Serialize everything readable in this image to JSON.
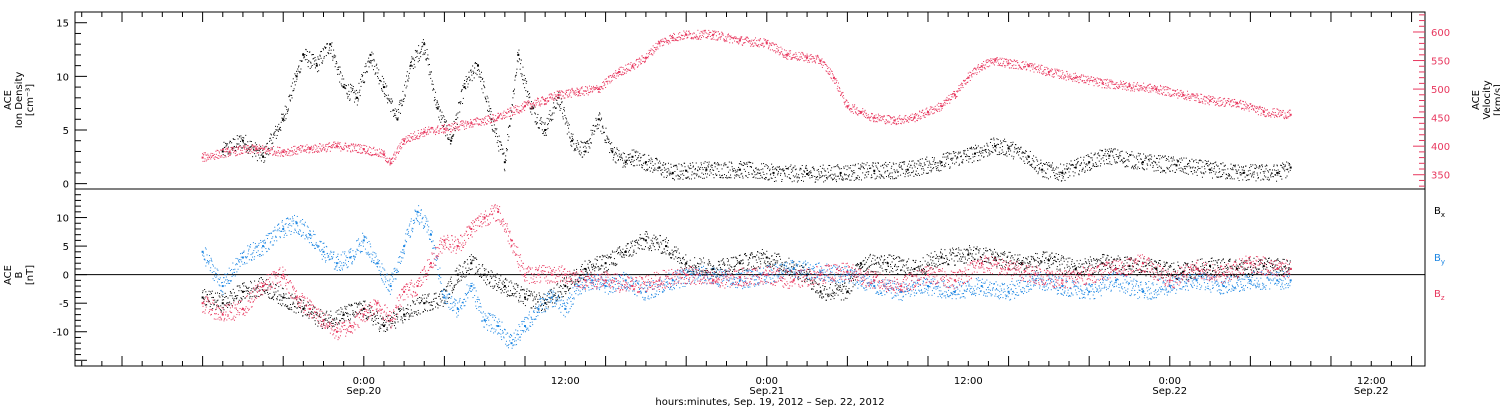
{
  "chart_data": [
    {
      "type": "scatter",
      "panel": "top",
      "ylabel_left_lines": [
        "ACE",
        "Ion Density",
        "[cm⁻³]"
      ],
      "ylabel_right_lines": [
        "ACE",
        "Velocity",
        "[km/s]"
      ],
      "ylim_left": [
        -0.5,
        16
      ],
      "ylim_right": [
        325,
        635
      ],
      "left_ticks": [
        0,
        5,
        10,
        15
      ],
      "right_ticks": [
        350,
        400,
        450,
        500,
        550,
        600
      ],
      "series": [
        {
          "axis": "left",
          "color": "#000000",
          "points": [
            [
              3,
              3
            ],
            [
              6,
              4
            ],
            [
              9,
              2.5
            ],
            [
              12,
              6
            ],
            [
              14,
              10
            ],
            [
              15,
              12
            ],
            [
              17,
              11
            ],
            [
              19,
              13
            ],
            [
              21,
              9
            ],
            [
              23,
              8
            ],
            [
              25,
              12
            ],
            [
              27,
              9
            ],
            [
              29,
              6
            ],
            [
              31,
              11
            ],
            [
              33,
              13
            ],
            [
              35,
              7
            ],
            [
              37,
              4
            ],
            [
              39,
              9
            ],
            [
              41,
              11
            ],
            [
              43,
              6
            ],
            [
              45,
              2
            ],
            [
              47,
              12
            ],
            [
              49,
              7
            ],
            [
              51,
              5
            ],
            [
              53,
              8
            ],
            [
              55,
              4
            ],
            [
              57,
              3
            ],
            [
              59,
              6
            ],
            [
              61,
              3
            ],
            [
              63,
              2
            ],
            [
              64,
              2.5
            ],
            [
              66,
              2
            ],
            [
              68,
              1.5
            ],
            [
              70,
              1
            ],
            [
              72,
              1.2
            ],
            [
              75,
              1.3
            ],
            [
              80,
              1.3
            ],
            [
              85,
              1
            ],
            [
              90,
              0.9
            ],
            [
              95,
              1
            ],
            [
              100,
              1.2
            ],
            [
              105,
              1.3
            ],
            [
              110,
              2
            ],
            [
              115,
              2.8
            ],
            [
              118,
              3.5
            ],
            [
              120,
              3.3
            ],
            [
              123,
              2.5
            ],
            [
              125,
              1.3
            ],
            [
              128,
              1
            ],
            [
              130,
              1.5
            ],
            [
              132,
              2
            ],
            [
              135,
              2.6
            ],
            [
              140,
              2
            ],
            [
              145,
              1.7
            ],
            [
              150,
              1.3
            ],
            [
              155,
              1
            ],
            [
              160,
              1
            ],
            [
              162,
              1.5
            ]
          ]
        },
        {
          "axis": "right",
          "color": "#e8375e",
          "points": [
            [
              0,
              380
            ],
            [
              4,
              390
            ],
            [
              8,
              395
            ],
            [
              12,
              390
            ],
            [
              16,
              395
            ],
            [
              20,
              400
            ],
            [
              24,
              395
            ],
            [
              27,
              385
            ],
            [
              28,
              370
            ],
            [
              30,
              410
            ],
            [
              33,
              425
            ],
            [
              36,
              430
            ],
            [
              40,
              440
            ],
            [
              44,
              450
            ],
            [
              48,
              470
            ],
            [
              51,
              480
            ],
            [
              53,
              490
            ],
            [
              56,
              495
            ],
            [
              59,
              500
            ],
            [
              62,
              530
            ],
            [
              64,
              540
            ],
            [
              66,
              555
            ],
            [
              68,
              580
            ],
            [
              70,
              590
            ],
            [
              72,
              595
            ],
            [
              76,
              595
            ],
            [
              80,
              585
            ],
            [
              84,
              580
            ],
            [
              87,
              560
            ],
            [
              90,
              555
            ],
            [
              92,
              550
            ],
            [
              94,
              520
            ],
            [
              96,
              470
            ],
            [
              98,
              460
            ],
            [
              100,
              450
            ],
            [
              103,
              445
            ],
            [
              106,
              450
            ],
            [
              108,
              460
            ],
            [
              110,
              470
            ],
            [
              112,
              490
            ],
            [
              114,
              520
            ],
            [
              116,
              540
            ],
            [
              118,
              550
            ],
            [
              120,
              545
            ],
            [
              123,
              540
            ],
            [
              126,
              530
            ],
            [
              130,
              520
            ],
            [
              134,
              510
            ],
            [
              138,
              505
            ],
            [
              142,
              500
            ],
            [
              146,
              490
            ],
            [
              150,
              480
            ],
            [
              154,
              475
            ],
            [
              158,
              460
            ],
            [
              162,
              455
            ]
          ]
        }
      ]
    },
    {
      "type": "scatter",
      "panel": "bottom",
      "ylabel_lines": [
        "ACE",
        "B",
        "[nT]"
      ],
      "ylim": [
        -16,
        15
      ],
      "y_ticks": [
        -10,
        -5,
        0,
        5,
        10
      ],
      "legend": [
        "Bx",
        "By",
        "Bz"
      ],
      "legend_placement": "right",
      "series": [
        {
          "name": "Bx",
          "color": "#000000",
          "points": [
            [
              0,
              -4
            ],
            [
              3,
              -5
            ],
            [
              6,
              -3
            ],
            [
              9,
              -2
            ],
            [
              12,
              -4
            ],
            [
              15,
              -6
            ],
            [
              18,
              -8
            ],
            [
              21,
              -7
            ],
            [
              24,
              -6
            ],
            [
              27,
              -9
            ],
            [
              30,
              -7
            ],
            [
              33,
              -5
            ],
            [
              36,
              -4
            ],
            [
              38,
              0
            ],
            [
              40,
              2
            ],
            [
              42,
              0
            ],
            [
              45,
              -2
            ],
            [
              48,
              -4
            ],
            [
              51,
              -5
            ],
            [
              54,
              -2
            ],
            [
              57,
              1
            ],
            [
              60,
              2
            ],
            [
              63,
              4
            ],
            [
              66,
              6
            ],
            [
              69,
              5
            ],
            [
              72,
              2
            ],
            [
              76,
              1
            ],
            [
              80,
              2
            ],
            [
              84,
              3
            ],
            [
              88,
              1
            ],
            [
              90,
              0
            ],
            [
              92,
              -3
            ],
            [
              96,
              -3
            ],
            [
              98,
              2
            ],
            [
              102,
              2
            ],
            [
              106,
              1
            ],
            [
              110,
              3
            ],
            [
              114,
              3.5
            ],
            [
              118,
              3
            ],
            [
              122,
              2
            ],
            [
              126,
              2.5
            ],
            [
              130,
              1
            ],
            [
              134,
              2
            ],
            [
              138,
              1.5
            ],
            [
              142,
              1
            ],
            [
              146,
              0.5
            ],
            [
              150,
              1.5
            ],
            [
              154,
              1
            ],
            [
              158,
              1.5
            ],
            [
              162,
              1
            ]
          ]
        },
        {
          "name": "By",
          "color": "#1c86e3",
          "points": [
            [
              0,
              4
            ],
            [
              3,
              -2
            ],
            [
              6,
              3
            ],
            [
              9,
              5
            ],
            [
              12,
              8
            ],
            [
              14,
              9
            ],
            [
              16,
              7
            ],
            [
              18,
              4
            ],
            [
              20,
              2
            ],
            [
              22,
              3
            ],
            [
              24,
              6
            ],
            [
              26,
              2
            ],
            [
              28,
              -2
            ],
            [
              30,
              5
            ],
            [
              32,
              11
            ],
            [
              34,
              7
            ],
            [
              36,
              -4
            ],
            [
              38,
              -6
            ],
            [
              40,
              -2
            ],
            [
              42,
              -8
            ],
            [
              44,
              -9
            ],
            [
              46,
              -12
            ],
            [
              48,
              -9
            ],
            [
              50,
              -6
            ],
            [
              52,
              -4
            ],
            [
              54,
              -6
            ],
            [
              56,
              -2
            ],
            [
              58,
              -1
            ],
            [
              60,
              -2
            ],
            [
              63,
              -1
            ],
            [
              66,
              -3
            ],
            [
              70,
              -1
            ],
            [
              74,
              0
            ],
            [
              80,
              -1
            ],
            [
              84,
              0
            ],
            [
              88,
              1
            ],
            [
              92,
              0.5
            ],
            [
              96,
              0
            ],
            [
              100,
              -2
            ],
            [
              104,
              -3
            ],
            [
              108,
              -2
            ],
            [
              112,
              -3
            ],
            [
              116,
              -2
            ],
            [
              120,
              -3
            ],
            [
              124,
              -1
            ],
            [
              128,
              -2
            ],
            [
              132,
              -3
            ],
            [
              136,
              -1
            ],
            [
              140,
              -3
            ],
            [
              144,
              -2
            ],
            [
              148,
              -1
            ],
            [
              152,
              -2
            ],
            [
              156,
              -1
            ],
            [
              160,
              -1
            ],
            [
              162,
              -1
            ]
          ]
        },
        {
          "name": "Bz",
          "color": "#e8375e",
          "points": [
            [
              0,
              -5
            ],
            [
              3,
              -7
            ],
            [
              6,
              -6
            ],
            [
              9,
              -2
            ],
            [
              12,
              0
            ],
            [
              14,
              -4
            ],
            [
              16,
              -6
            ],
            [
              18,
              -8
            ],
            [
              20,
              -10
            ],
            [
              22,
              -9
            ],
            [
              24,
              -7
            ],
            [
              26,
              -5
            ],
            [
              28,
              -8
            ],
            [
              30,
              -3
            ],
            [
              32,
              -2
            ],
            [
              34,
              2
            ],
            [
              36,
              6
            ],
            [
              38,
              5
            ],
            [
              40,
              8
            ],
            [
              42,
              10
            ],
            [
              44,
              11
            ],
            [
              46,
              6
            ],
            [
              48,
              0
            ],
            [
              50,
              0
            ],
            [
              52,
              0
            ],
            [
              54,
              0
            ],
            [
              57,
              -1
            ],
            [
              60,
              -1
            ],
            [
              64,
              -2
            ],
            [
              68,
              -1
            ],
            [
              72,
              0
            ],
            [
              76,
              -1
            ],
            [
              80,
              -0.5
            ],
            [
              84,
              0
            ],
            [
              88,
              -1
            ],
            [
              92,
              0
            ],
            [
              96,
              0.5
            ],
            [
              100,
              -1
            ],
            [
              104,
              -2
            ],
            [
              108,
              0
            ],
            [
              112,
              -1
            ],
            [
              116,
              2
            ],
            [
              120,
              1
            ],
            [
              124,
              0
            ],
            [
              128,
              -1
            ],
            [
              132,
              0
            ],
            [
              136,
              1
            ],
            [
              140,
              2
            ],
            [
              144,
              -1
            ],
            [
              148,
              1
            ],
            [
              152,
              0
            ],
            [
              156,
              2
            ],
            [
              160,
              1
            ],
            [
              162,
              1
            ]
          ]
        }
      ]
    }
  ],
  "x_axis": {
    "xlim_hours": [
      -19,
      182
    ],
    "ticks": [
      {
        "hour": 24,
        "time": "0:00",
        "date": "Sep.20"
      },
      {
        "hour": 54,
        "time": "12:00",
        "date": ""
      },
      {
        "hour": 84,
        "time": "0:00",
        "date": "Sep.21"
      },
      {
        "hour": 114,
        "time": "12:00",
        "date": ""
      },
      {
        "hour": 144,
        "time": "0:00",
        "date": "Sep.22"
      },
      {
        "hour": 174,
        "time": "12:00",
        "date": "Sep.22"
      }
    ],
    "label": "hours:minutes, Sep. 19, 2012 – Sep. 22, 2012"
  }
}
